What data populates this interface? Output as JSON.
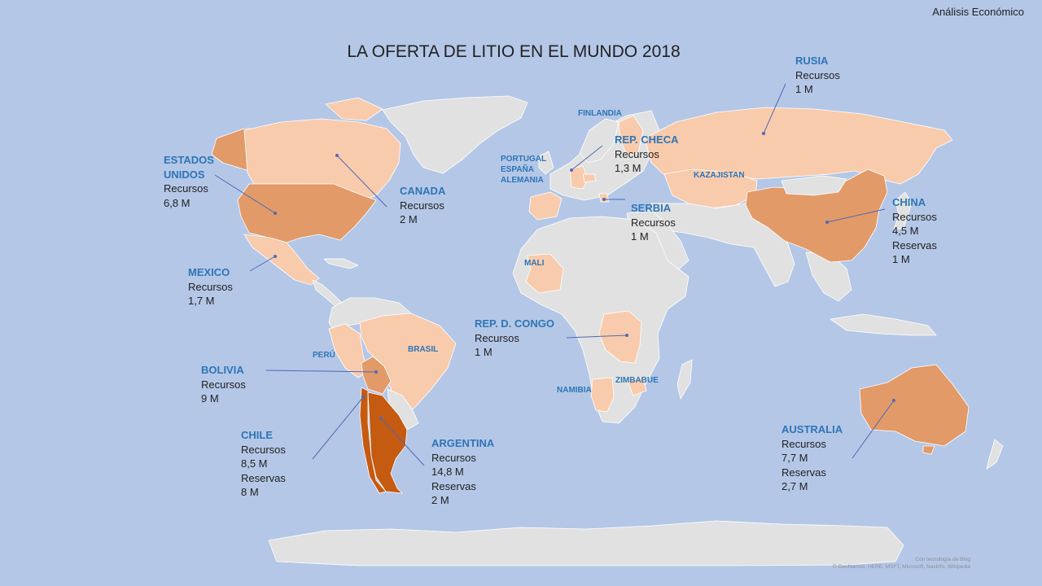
{
  "header": {
    "title": "LA OFERTA DE LITIO EN EL MUNDO 2018",
    "corner": "Análisis Económico"
  },
  "attribution": {
    "line1": "Con tecnología de Bing",
    "line2": "© GeoNames, HERE, MSFT, Microsoft, Navinfo, Wikipedia"
  },
  "colors": {
    "ocean": "#b4c7e7",
    "no_data": "#e1e1e1",
    "light": "#f8cbad",
    "medium": "#e29a68",
    "dark": "#c55a11",
    "label_blue": "#2e75b6",
    "leader_line": "#4f6bb3"
  },
  "labels": {
    "rusia": {
      "name": "RUSIA",
      "l1": "Recursos",
      "l2": "1 M"
    },
    "eeuu": {
      "name": "ESTADOS UNIDOS",
      "l1": "Recursos",
      "l2": "6,8 M"
    },
    "canada": {
      "name": "CANADA",
      "l1": "Recursos",
      "l2": "2 M"
    },
    "checa": {
      "name": "REP. CHECA",
      "l1": "Recursos",
      "l2": "1,3 M"
    },
    "serbia": {
      "name": "SERBIA",
      "l1": "Recursos",
      "l2": "1 M"
    },
    "china": {
      "name": "CHINA",
      "l1": "Recursos",
      "l2": "4,5 M",
      "l3": "Reservas",
      "l4": "1 M"
    },
    "mexico": {
      "name": "MEXICO",
      "l1": "Recursos",
      "l2": "1,7 M"
    },
    "congo": {
      "name": "REP. D. CONGO",
      "l1": "Recursos",
      "l2": "1 M"
    },
    "bolivia": {
      "name": "BOLIVIA",
      "l1": "Recursos",
      "l2": "9 M"
    },
    "chile": {
      "name": "CHILE",
      "l1": "Recursos",
      "l2": "8,5 M",
      "l3": "Reservas",
      "l4": "8 M"
    },
    "argentina": {
      "name": "ARGENTINA",
      "l1": "Recursos",
      "l2": "14,8 M",
      "l3": "Reservas",
      "l4": "2 M"
    },
    "australia": {
      "name": "AUSTRALIA",
      "l1": "Recursos",
      "l2": "7,7 M",
      "l3": "Reservas",
      "l4": "2,7 M"
    }
  },
  "small_labels": {
    "finlandia": "FINLANDIA",
    "portugal": "PORTUGAL",
    "espana": "ESPAÑA",
    "alemania": "ALEMANIA",
    "kazajistan": "KAZAJISTAN",
    "mali": "MALI",
    "brasil": "BRASIL",
    "peru": "PERÚ",
    "namibia": "NAMIBIA",
    "zimbabue": "ZIMBABUE"
  }
}
